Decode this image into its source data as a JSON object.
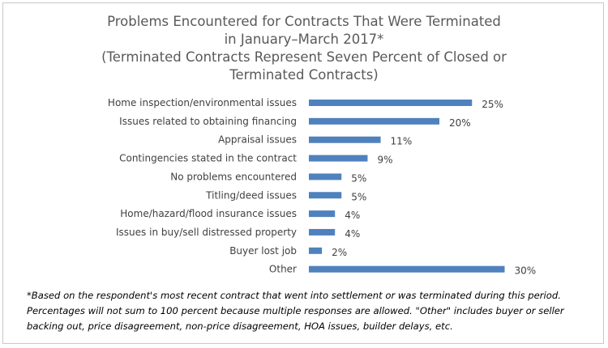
{
  "chart": {
    "title_lines": [
      "Problems Encountered for Contracts That Were Terminated",
      "in January–March 2017*",
      "(Terminated Contracts Represent Seven Percent of Closed or",
      "Terminated Contracts)"
    ],
    "footnote_lines": [
      "*Based on the respondent's most recent contract that went into settlement or was terminated during this period.",
      "Percentages will not sum to 100 percent because multiple responses are allowed. \"Other\" includes buyer or seller",
      "backing out, price disagreement, non-price disagreement, HOA issues, builder delays, etc."
    ]
  },
  "chart_data": {
    "type": "bar",
    "orientation": "horizontal",
    "title": "Problems Encountered for Contracts That Were Terminated in January–March 2017* (Terminated Contracts Represent Seven Percent of Closed or Terminated Contracts)",
    "categories": [
      "Home inspection/environmental issues",
      "Issues related to obtaining financing",
      "Appraisal issues",
      "Contingencies stated in the contract",
      "No problems encountered",
      "Titling/deed issues",
      "Home/hazard/flood insurance issues",
      "Issues in buy/sell distressed property",
      "Buyer lost job",
      "Other"
    ],
    "values": [
      25,
      20,
      11,
      9,
      5,
      5,
      4,
      4,
      2,
      30
    ],
    "value_labels": [
      "25%",
      "20%",
      "11%",
      "9%",
      "5%",
      "5%",
      "4%",
      "4%",
      "2%",
      "30%"
    ],
    "unit": "%",
    "bar_color": "#4f81bd",
    "grid": false,
    "legend": "none",
    "xlim": [
      0,
      30
    ]
  }
}
